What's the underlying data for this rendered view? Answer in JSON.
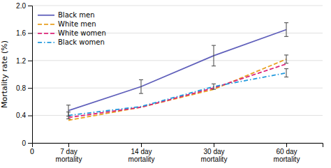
{
  "chart_data": {
    "type": "line",
    "categories": [
      "7 day\nmortality",
      "14 day\nmortality",
      "30 day\nmortality",
      "60 day\nmortality"
    ],
    "series": [
      {
        "name": "Black men",
        "color": "#6060bb",
        "line_style": "solid",
        "values": [
          0.47,
          0.82,
          1.27,
          1.65
        ],
        "error": [
          0.08,
          0.1,
          0.15,
          0.1
        ]
      },
      {
        "name": "White men",
        "color": "#e8a020",
        "line_style": "dashed",
        "values": [
          0.33,
          0.52,
          0.78,
          1.22
        ],
        "error": [
          null,
          null,
          null,
          0.06
        ]
      },
      {
        "name": "White women",
        "color": "#dd2277",
        "line_style": "dashed",
        "values": [
          0.37,
          0.52,
          0.8,
          1.15
        ]
      },
      {
        "name": "Black women",
        "color": "#2299dd",
        "line_style": "dashdot",
        "values": [
          0.4,
          0.53,
          0.82,
          1.02
        ],
        "error": [
          0.05,
          null,
          0.04,
          0.06
        ]
      }
    ],
    "y_label": "Mortality rate (%)",
    "ylim": [
      0,
      2.0
    ],
    "yticks": [
      0,
      0.4,
      0.8,
      1.2,
      1.6,
      {
        "value": 2.0,
        "label": "2.0"
      }
    ],
    "annotations": [
      {
        "text": "0",
        "y": 0
      }
    ],
    "grid": true,
    "legend": "upper left"
  }
}
